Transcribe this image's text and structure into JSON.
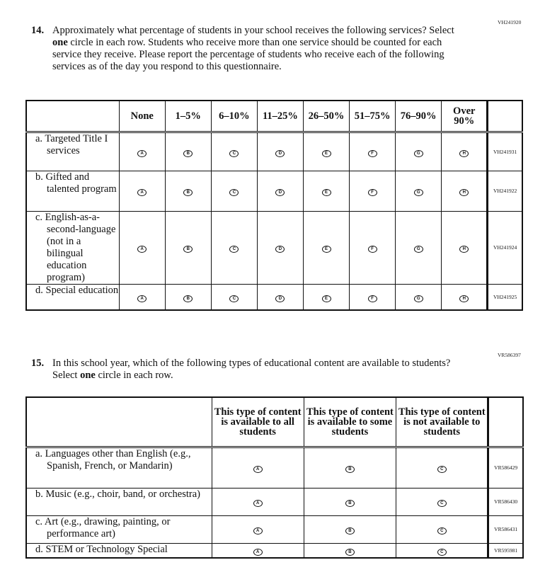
{
  "q14": {
    "code": "VH241920",
    "number": "14.",
    "text_pre": "Approximately what percentage of students in your school receives the following services? Select ",
    "text_bold": "one",
    "text_post": " circle in each row. Students who receive more than one service should be counted for each service they receive. Please report the percentage of students who receive each of the following services as of the day you respond to this questionnaire.",
    "columns": [
      "None",
      "1–5%",
      "6–10%",
      "11–25%",
      "26–50%",
      "51–75%",
      "76–90%",
      "Over 90%"
    ],
    "options": [
      "A",
      "B",
      "C",
      "D",
      "E",
      "F",
      "G",
      "H"
    ],
    "rows": [
      {
        "label": "a. Targeted Title I services",
        "code": "VH241931"
      },
      {
        "label": "b. Gifted and talented program",
        "code": "VH241922"
      },
      {
        "label": "c. English-as-a-second-language (not in a bilingual education program)",
        "code": "VH241924"
      },
      {
        "label": "d. Special education",
        "code": "VH241925"
      }
    ]
  },
  "q15": {
    "code": "VR586397",
    "number": "15.",
    "text_pre": "In this school year, which of the following types of educational content are available to students? Select ",
    "text_bold": "one",
    "text_post": " circle in each row.",
    "columns": [
      "This type of content is available to all students",
      "This type of content is available to some students",
      "This type of content is not available to students"
    ],
    "options": [
      "A",
      "B",
      "C"
    ],
    "rows": [
      {
        "label": "a. Languages other than English (e.g., Spanish, French, or Mandarin)",
        "code": "VR586429"
      },
      {
        "label": "b. Music (e.g., choir, band, or orchestra)",
        "code": "VR586430"
      },
      {
        "label": "c. Art (e.g., drawing, painting, or performance art)",
        "code": "VR586431"
      },
      {
        "label": "d. STEM or Technology Special",
        "code": "VR595981"
      }
    ]
  }
}
